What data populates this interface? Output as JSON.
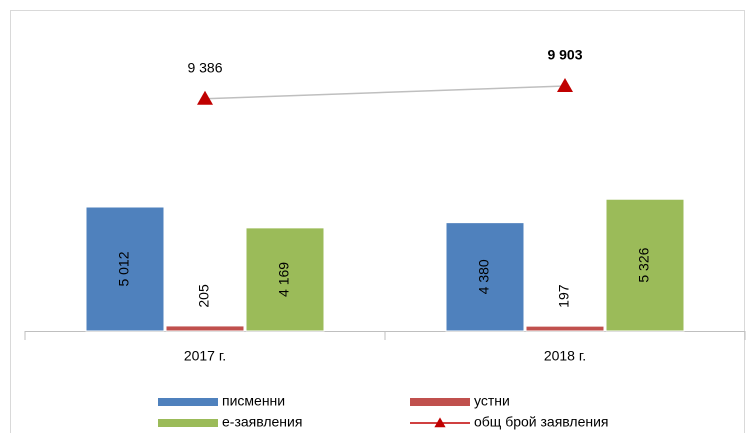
{
  "chart_data": {
    "type": "bar",
    "categories": [
      "2017 г.",
      "2018 г."
    ],
    "series": [
      {
        "name": "писменни",
        "color": "#4f81bd",
        "values": [
          5012,
          4380
        ],
        "value_labels": [
          "5 012",
          "4 380"
        ]
      },
      {
        "name": "устни",
        "color": "#c0504d",
        "values": [
          205,
          197
        ],
        "value_labels": [
          "205",
          "197"
        ]
      },
      {
        "name": "е-заявления",
        "color": "#9bbb59",
        "values": [
          4169,
          5326
        ],
        "value_labels": [
          "4 169",
          "5 326"
        ]
      },
      {
        "name": "общ брой заявления",
        "type": "line",
        "color": "#c00000",
        "line_color": "#bfbfbf",
        "values": [
          9386,
          9903
        ],
        "value_labels": [
          "9 386",
          "9 903"
        ]
      }
    ]
  }
}
